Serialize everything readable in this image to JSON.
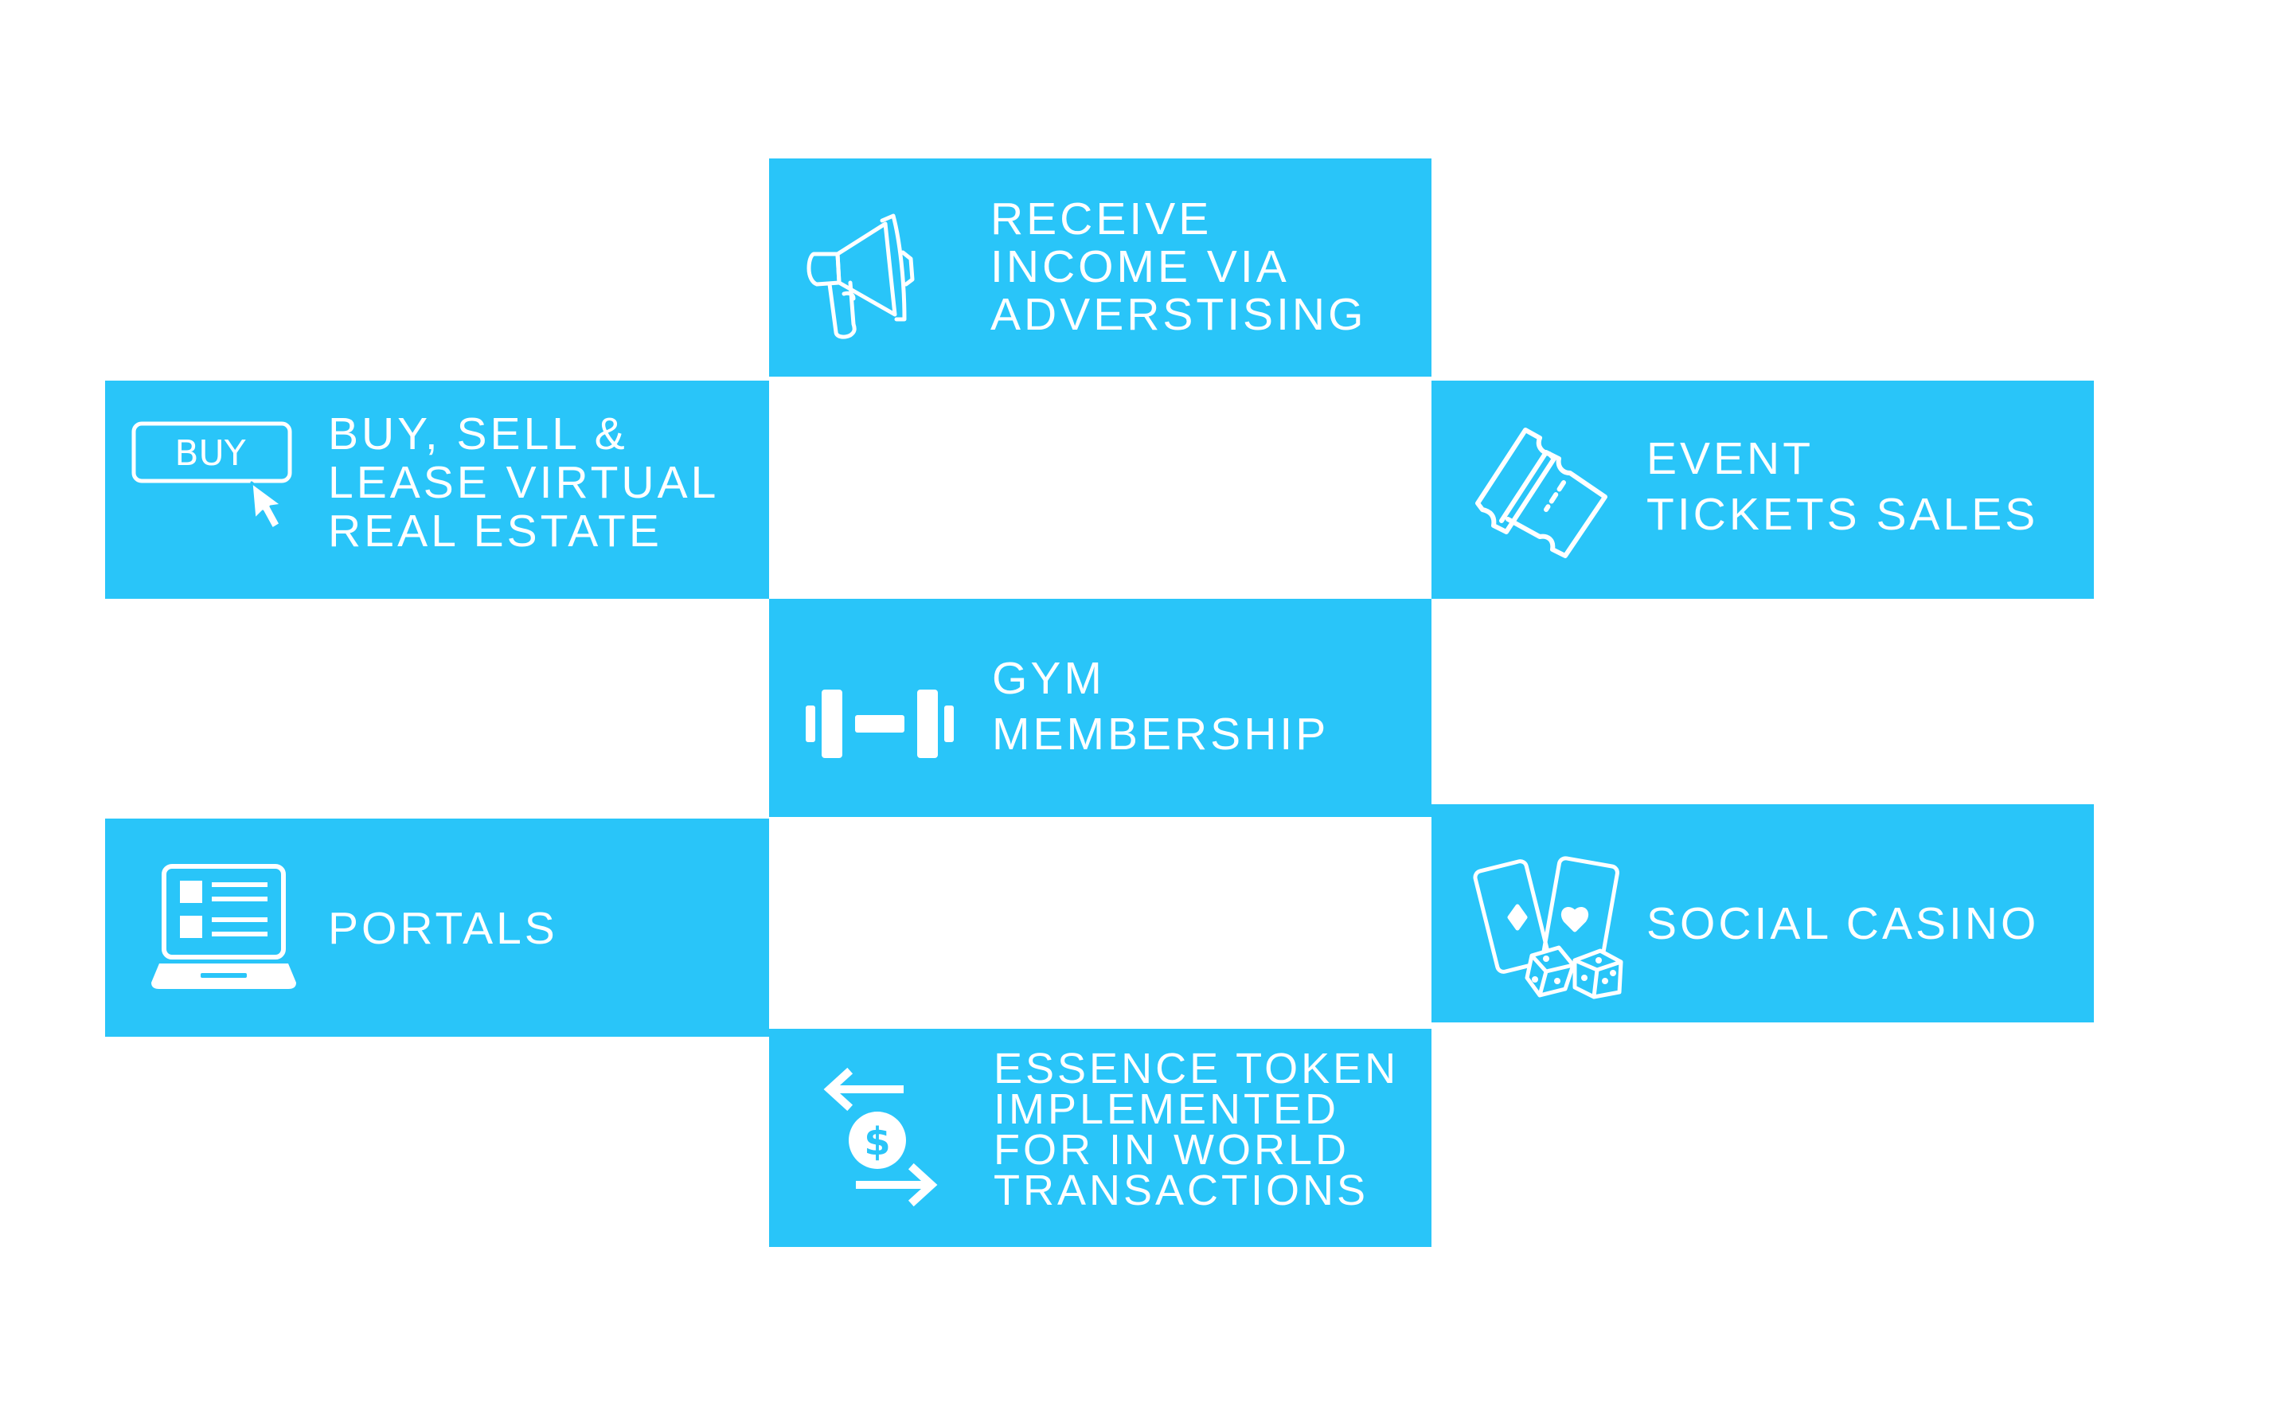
{
  "theme": {
    "tile_color": "#29c5f9",
    "text_color": "#ffffff",
    "background": "#ffffff"
  },
  "tiles": {
    "advertising": {
      "icon": "megaphone-icon",
      "lines": [
        "RECEIVE",
        "INCOME VIA",
        "ADVERSTISING"
      ]
    },
    "real_estate": {
      "icon": "buy-button-cursor-icon",
      "icon_text": "BUY",
      "lines": [
        "BUY, SELL &",
        "LEASE VIRTUAL",
        "REAL ESTATE"
      ]
    },
    "tickets": {
      "icon": "tickets-icon",
      "lines": [
        "EVENT",
        "TICKETS SALES"
      ]
    },
    "gym": {
      "icon": "dumbbell-icon",
      "lines": [
        "GYM",
        "MEMBERSHIP"
      ]
    },
    "casino": {
      "icon": "cards-dice-icon",
      "lines": [
        "SOCIAL CASINO"
      ]
    },
    "portals": {
      "icon": "laptop-list-icon",
      "lines": [
        "PORTALS"
      ]
    },
    "essence": {
      "icon": "currency-exchange-icon",
      "icon_text": "$",
      "lines": [
        "ESSENCE TOKEN",
        "IMPLEMENTED",
        "FOR IN WORLD",
        "TRANSACTIONS"
      ]
    }
  }
}
